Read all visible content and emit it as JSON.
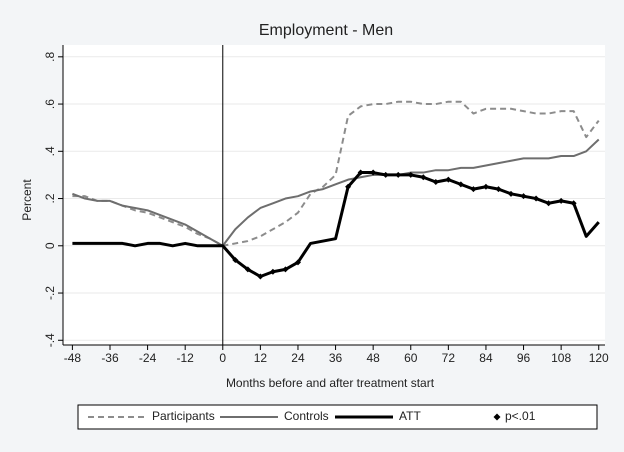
{
  "chart_data": {
    "type": "line",
    "title": "Employment - Men",
    "x_label": "Months before and after treatment start",
    "y_label": "Percent",
    "x": [
      -48,
      -44,
      -40,
      -36,
      -32,
      -28,
      -24,
      -20,
      -16,
      -12,
      -8,
      -4,
      0,
      4,
      8,
      12,
      16,
      20,
      24,
      28,
      32,
      36,
      40,
      44,
      48,
      52,
      56,
      60,
      64,
      68,
      72,
      76,
      80,
      84,
      88,
      92,
      96,
      100,
      104,
      108,
      112,
      116,
      120
    ],
    "series": [
      {
        "name": "Participants",
        "color": "#8c8c8c",
        "style": "dashed",
        "values": [
          0.21,
          0.21,
          0.19,
          0.19,
          0.17,
          0.15,
          0.14,
          0.12,
          0.1,
          0.08,
          0.05,
          0.03,
          0.0,
          0.01,
          0.02,
          0.04,
          0.07,
          0.1,
          0.14,
          0.22,
          0.25,
          0.3,
          0.55,
          0.59,
          0.6,
          0.6,
          0.61,
          0.61,
          0.6,
          0.6,
          0.61,
          0.61,
          0.56,
          0.58,
          0.58,
          0.58,
          0.57,
          0.56,
          0.56,
          0.57,
          0.57,
          0.46,
          0.53
        ]
      },
      {
        "name": "Controls",
        "color": "#6e6e6e",
        "style": "solid",
        "values": [
          0.22,
          0.2,
          0.19,
          0.19,
          0.17,
          0.16,
          0.15,
          0.13,
          0.11,
          0.09,
          0.06,
          0.03,
          0.0,
          0.07,
          0.12,
          0.16,
          0.18,
          0.2,
          0.21,
          0.23,
          0.24,
          0.26,
          0.28,
          0.29,
          0.3,
          0.3,
          0.3,
          0.31,
          0.31,
          0.32,
          0.32,
          0.33,
          0.33,
          0.34,
          0.35,
          0.36,
          0.37,
          0.37,
          0.37,
          0.38,
          0.38,
          0.4,
          0.45
        ]
      },
      {
        "name": "ATT",
        "color": "#000000",
        "style": "thick",
        "values": [
          0.01,
          0.01,
          0.01,
          0.01,
          0.01,
          0.0,
          0.01,
          0.01,
          0.0,
          0.01,
          0.0,
          0.0,
          0.0,
          -0.06,
          -0.1,
          -0.13,
          -0.11,
          -0.1,
          -0.07,
          0.01,
          0.02,
          0.03,
          0.25,
          0.31,
          0.31,
          0.3,
          0.3,
          0.3,
          0.29,
          0.27,
          0.28,
          0.26,
          0.24,
          0.25,
          0.24,
          0.22,
          0.21,
          0.2,
          0.18,
          0.19,
          0.18,
          0.04,
          0.1
        ]
      },
      {
        "name": "p<.01",
        "color": "#000000",
        "style": "markers",
        "values": [
          null,
          null,
          null,
          null,
          null,
          null,
          null,
          null,
          null,
          null,
          null,
          null,
          null,
          -0.06,
          -0.1,
          -0.13,
          -0.11,
          -0.1,
          -0.07,
          null,
          null,
          null,
          0.25,
          0.31,
          0.31,
          0.3,
          0.3,
          0.3,
          0.29,
          0.27,
          0.28,
          0.26,
          0.24,
          0.25,
          0.24,
          0.22,
          0.21,
          0.2,
          0.18,
          0.19,
          0.18,
          null,
          null
        ]
      }
    ],
    "xlim": [
      -51,
      122
    ],
    "ylim": [
      -0.42,
      0.85
    ],
    "xticks": [
      -48,
      -36,
      -24,
      -12,
      0,
      12,
      24,
      36,
      48,
      60,
      72,
      84,
      96,
      108,
      120
    ],
    "yticks": [
      {
        "value": -0.4,
        "label": "-.4"
      },
      {
        "value": -0.2,
        "label": "-.2"
      },
      0,
      {
        "value": 0.2,
        "label": ".2"
      },
      {
        "value": 0.4,
        "label": ".4"
      },
      {
        "value": 0.6,
        "label": ".6"
      },
      {
        "value": 0.8,
        "label": ".8"
      }
    ],
    "xline": 0,
    "grid": true,
    "legend": "bottom"
  }
}
